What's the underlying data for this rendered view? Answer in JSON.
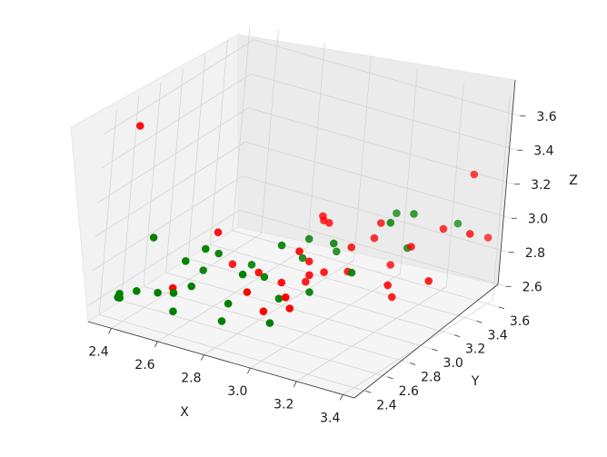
{
  "chart_data": {
    "type": "scatter",
    "projection": "3d",
    "title": "",
    "xlabel": "X",
    "ylabel": "Y",
    "zlabel": "Z",
    "xlim": [
      2.3,
      3.45
    ],
    "ylim": [
      2.3,
      3.65
    ],
    "zlim": [
      2.5,
      3.7
    ],
    "x_ticks": [
      "2.4",
      "2.6",
      "2.8",
      "3.0",
      "3.2",
      "3.4"
    ],
    "y_ticks": [
      "2.4",
      "2.6",
      "2.8",
      "3.0",
      "3.2",
      "3.4",
      "3.6"
    ],
    "z_ticks": [
      "2.6",
      "2.8",
      "3.0",
      "3.2",
      "3.4",
      "3.6"
    ],
    "grid": true,
    "colors": {
      "red_series": "#ff0000",
      "green_series": "#008000"
    },
    "series": [
      {
        "color": "#ff0000",
        "points": [
          [
            3.33,
            3.53,
            3.26
          ],
          [
            2.33,
            2.57,
            3.55
          ],
          [
            3.2,
            3.14,
            2.65
          ],
          [
            2.85,
            3.22,
            2.93
          ],
          [
            3.21,
            3.26,
            2.9
          ],
          [
            2.91,
            2.96,
            2.7
          ],
          [
            2.9,
            2.9,
            2.9
          ],
          [
            2.98,
            2.97,
            2.78
          ],
          [
            2.64,
            2.86,
            2.74
          ],
          [
            2.63,
            2.72,
            2.98
          ],
          [
            2.53,
            2.56,
            2.68
          ],
          [
            2.8,
            2.66,
            2.72
          ],
          [
            3.04,
            3.06,
            2.77
          ],
          [
            3.06,
            3.24,
            2.9
          ],
          [
            3.12,
            3.28,
            2.75
          ],
          [
            3.38,
            3.6,
            2.88
          ],
          [
            3.4,
            3.38,
            3.0
          ],
          [
            3.34,
            3.16,
            2.79
          ],
          [
            3.2,
            3.09,
            2.74
          ],
          [
            2.78,
            2.8,
            2.77
          ],
          [
            2.88,
            3.14,
            3.0
          ],
          [
            2.88,
            2.8,
            2.75
          ],
          [
            2.9,
            3.0,
            2.8
          ],
          [
            2.95,
            2.9,
            2.78
          ],
          [
            3.26,
            3.44,
            2.95
          ],
          [
            3.07,
            3.27,
            2.98
          ],
          [
            2.95,
            2.74,
            2.65
          ],
          [
            3.02,
            3.12,
            2.88
          ],
          [
            2.9,
            3.16,
            2.96
          ],
          [
            3.0,
            2.58,
            2.8
          ],
          [
            3.0,
            2.38,
            2.8
          ]
        ]
      },
      {
        "color": "#008000",
        "points": [
          [
            3.27,
            3.55,
            2.94
          ],
          [
            2.44,
            2.54,
            2.95
          ],
          [
            2.87,
            3.05,
            2.9
          ],
          [
            3.15,
            3.18,
            3.05
          ],
          [
            2.73,
            2.84,
            2.78
          ],
          [
            2.57,
            2.48,
            2.7
          ],
          [
            2.76,
            2.58,
            2.67
          ],
          [
            2.97,
            2.87,
            2.7
          ],
          [
            2.91,
            2.72,
            2.7
          ],
          [
            2.35,
            2.45,
            2.6
          ],
          [
            2.61,
            2.66,
            2.9
          ],
          [
            2.64,
            2.72,
            2.86
          ],
          [
            2.81,
            2.79,
            2.76
          ],
          [
            2.95,
            3.14,
            2.82
          ],
          [
            3.07,
            3.41,
            2.98
          ],
          [
            3.17,
            3.35,
            3.04
          ],
          [
            3.11,
            2.94,
            2.84
          ],
          [
            2.38,
            2.4,
            2.63
          ],
          [
            2.88,
            2.98,
            2.82
          ],
          [
            2.53,
            2.42,
            2.71
          ],
          [
            2.52,
            2.24,
            2.79
          ],
          [
            2.61,
            2.4,
            2.64
          ],
          [
            2.77,
            2.51,
            2.6
          ],
          [
            2.63,
            2.51,
            2.75
          ],
          [
            2.57,
            2.57,
            2.85
          ],
          [
            2.96,
            2.54,
            2.65
          ],
          [
            2.59,
            2.7,
            2.75
          ],
          [
            2.78,
            2.65,
            2.82
          ],
          [
            2.85,
            2.84,
            2.94
          ],
          [
            2.98,
            3.04,
            2.92
          ],
          [
            3.19,
            3.27,
            2.88
          ],
          [
            2.36,
            2.44,
            2.63
          ]
        ]
      }
    ]
  }
}
